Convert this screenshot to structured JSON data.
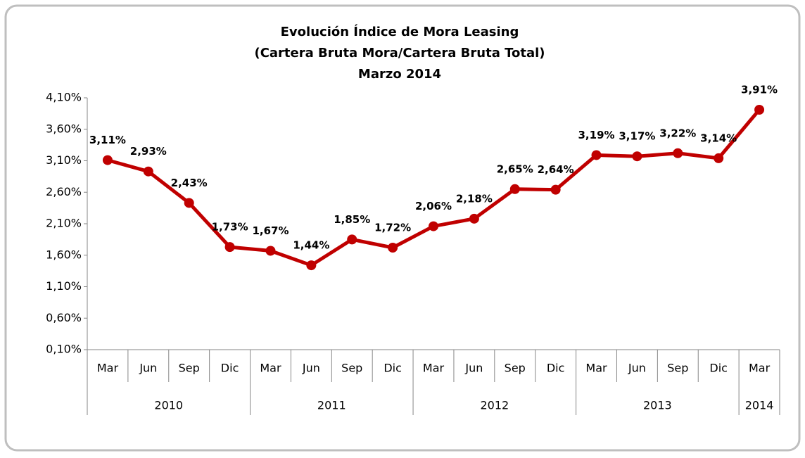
{
  "chart_data": {
    "type": "line",
    "title": [
      "Evolución Índice de Mora Leasing",
      "(Cartera Bruta Mora/Cartera Bruta Total)",
      "Marzo 2014"
    ],
    "groups": [
      {
        "name": "2010",
        "categories": [
          "Mar",
          "Jun",
          "Sep",
          "Dic"
        ]
      },
      {
        "name": "2011",
        "categories": [
          "Mar",
          "Jun",
          "Sep",
          "Dic"
        ]
      },
      {
        "name": "2012",
        "categories": [
          "Mar",
          "Jun",
          "Sep",
          "Dic"
        ]
      },
      {
        "name": "2013",
        "categories": [
          "Mar",
          "Jun",
          "Sep",
          "Dic"
        ]
      },
      {
        "name": "2014",
        "categories": [
          "Mar"
        ]
      }
    ],
    "values": [
      3.11,
      2.93,
      2.43,
      1.73,
      1.67,
      1.44,
      1.85,
      1.72,
      2.06,
      2.18,
      2.65,
      2.64,
      3.19,
      3.17,
      3.22,
      3.14,
      3.91
    ],
    "value_labels": [
      "3,11%",
      "2,93%",
      "2,43%",
      "1,73%",
      "1,67%",
      "1,44%",
      "1,85%",
      "1,72%",
      "2,06%",
      "2,18%",
      "2,65%",
      "2,64%",
      "3,19%",
      "3,17%",
      "3,22%",
      "3,14%",
      "3,91%"
    ],
    "color": "#c00000",
    "ylim": [
      0.1,
      4.1
    ],
    "yticks": [
      {
        "value": 0.1,
        "label": "0,10%"
      },
      {
        "value": 0.6,
        "label": "0,60%"
      },
      {
        "value": 1.1,
        "label": "1,10%"
      },
      {
        "value": 1.6,
        "label": "1,60%"
      },
      {
        "value": 2.1,
        "label": "2,10%"
      },
      {
        "value": 2.6,
        "label": "2,60%"
      },
      {
        "value": 3.1,
        "label": "3,10%"
      },
      {
        "value": 3.6,
        "label": "3,60%"
      },
      {
        "value": 4.1,
        "label": "4,10%"
      }
    ],
    "grid": false
  }
}
